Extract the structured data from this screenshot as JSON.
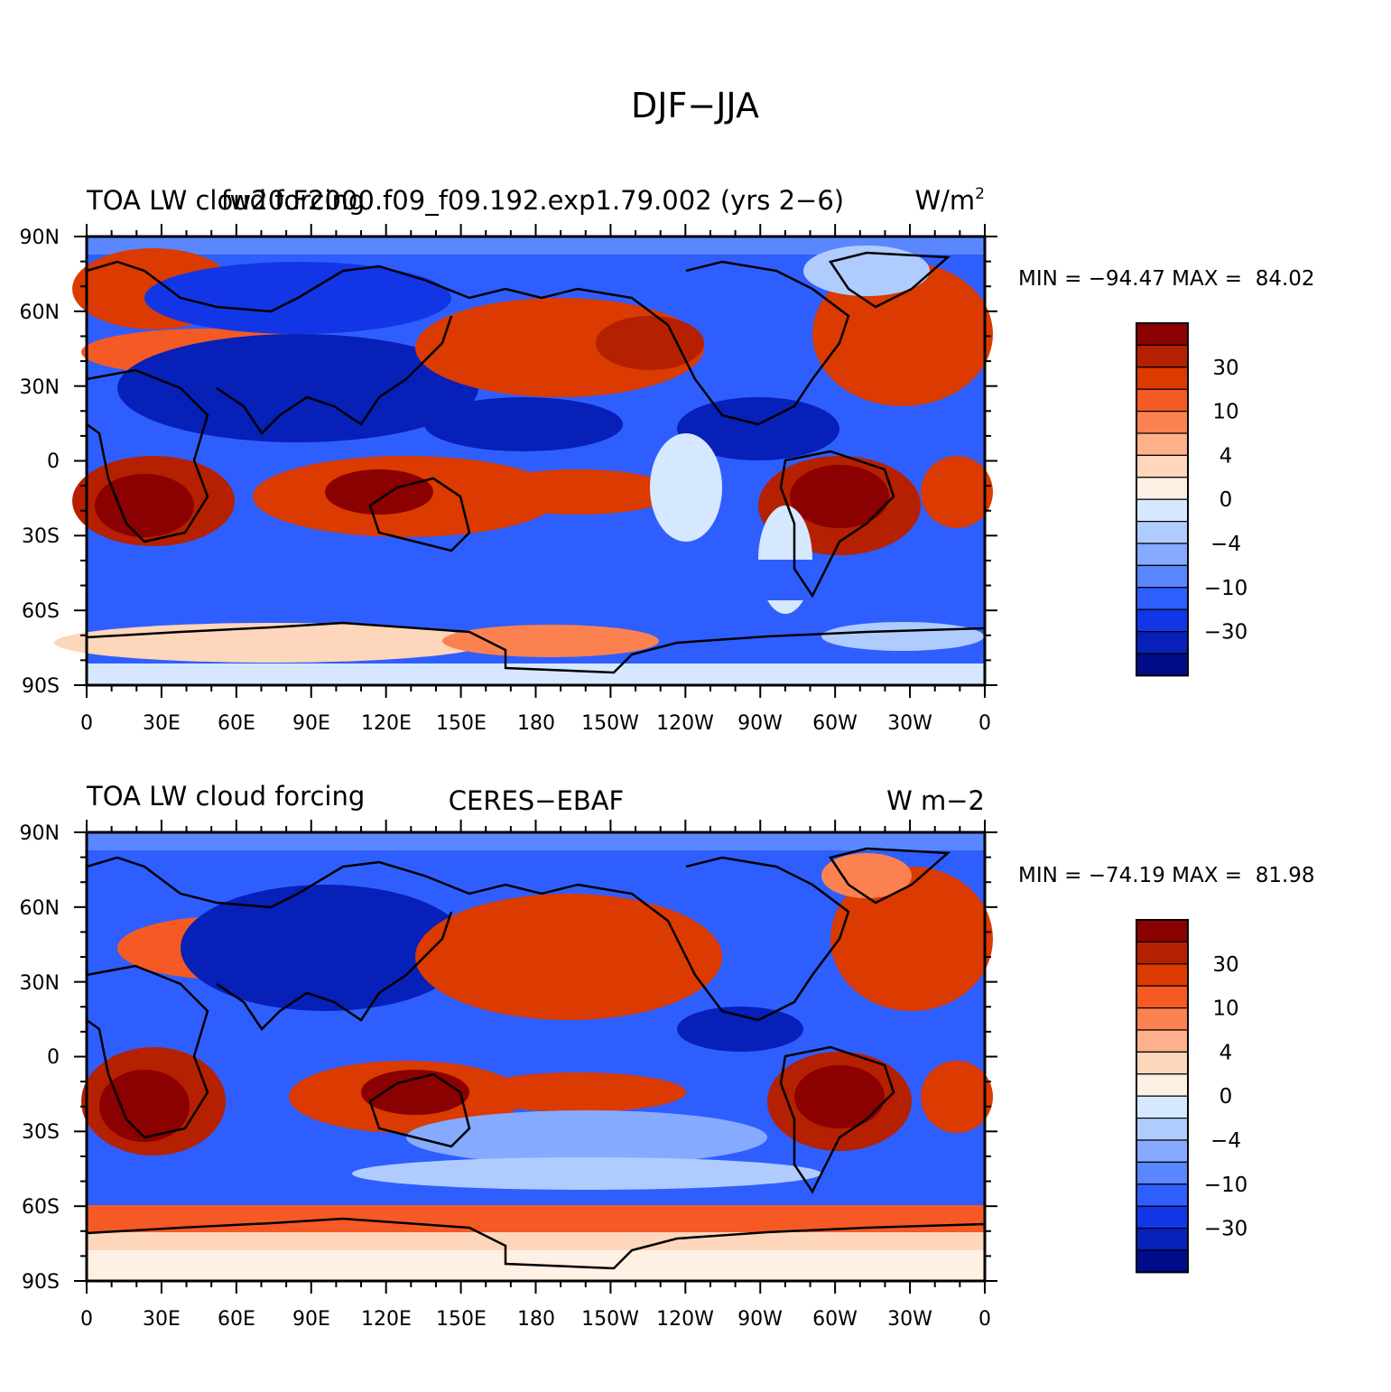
{
  "figure": {
    "title": "DJF−JJA"
  },
  "panels": [
    {
      "left_title": "TOA LW cloud forcing",
      "center_title": "fw20.F2000.f09_f09.192.exp1.79.002 (yrs 2−6)",
      "right_title": "W/m",
      "right_title_sup": "2",
      "stats": "MIN = −94.47 MAX =  84.02"
    },
    {
      "left_title": "TOA LW cloud forcing",
      "center_title": "CERES−EBAF",
      "right_title": "W m−2",
      "right_title_sup": "",
      "stats": "MIN = −74.19 MAX =  81.98"
    }
  ],
  "axes": {
    "lat_labels": [
      "90N",
      "60N",
      "30N",
      "0",
      "30S",
      "60S",
      "90S"
    ],
    "lon_labels": [
      "0",
      "30E",
      "60E",
      "90E",
      "120E",
      "150E",
      "180",
      "150W",
      "120W",
      "90W",
      "60W",
      "30W",
      "0"
    ]
  },
  "colorbar": {
    "colors": [
      "#8b0000",
      "#b52000",
      "#db3a00",
      "#f55a24",
      "#fb8250",
      "#fdb08a",
      "#fed6bb",
      "#fff0e4",
      "#d6e8ff",
      "#b0ccff",
      "#86aaff",
      "#5a86ff",
      "#2f5eff",
      "#1236e6",
      "#0720b8",
      "#000c8a"
    ],
    "labels": [
      "30",
      "10",
      "4",
      "0",
      "−4",
      "−10",
      "−30"
    ]
  },
  "map_layers": {
    "colors": {
      "pos3": "#8b0000",
      "pos2": "#db3a00",
      "pos1": "#fb8250",
      "near0": "#fff0e4",
      "neg_light": "#d6e8ff",
      "neg1": "#5a86ff",
      "neg2": "#2f5eff",
      "neg3": "#0720b8"
    }
  }
}
